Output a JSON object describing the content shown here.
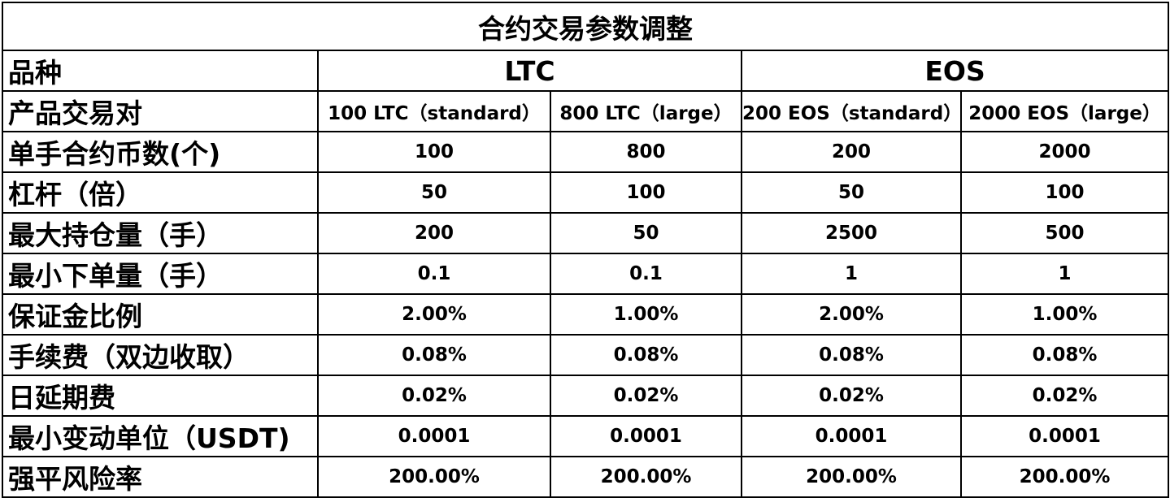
{
  "title": "合约交易参数调整",
  "header": {
    "label": "品种",
    "groups": [
      "LTC",
      "EOS"
    ]
  },
  "pairs_row": {
    "label": "产品交易对",
    "values": [
      "100 LTC（standard）",
      "800 LTC（large）",
      "200 EOS（standard）",
      "2000 EOS（large）"
    ]
  },
  "rows": [
    {
      "label": "单手合约币数(个)",
      "values": [
        "100",
        "800",
        "200",
        "2000"
      ]
    },
    {
      "label": "杠杆（倍）",
      "values": [
        "50",
        "100",
        "50",
        "100"
      ]
    },
    {
      "label": "最大持仓量（手）",
      "values": [
        "200",
        "50",
        "2500",
        "500"
      ]
    },
    {
      "label": "最小下单量（手）",
      "values": [
        "0.1",
        "0.1",
        "1",
        "1"
      ]
    },
    {
      "label": "保证金比例",
      "values": [
        "2.00%",
        "1.00%",
        "2.00%",
        "1.00%"
      ]
    },
    {
      "label": "手续费（双边收取）",
      "values": [
        "0.08%",
        "0.08%",
        "0.08%",
        "0.08%"
      ]
    },
    {
      "label": "日延期费",
      "values": [
        "0.02%",
        "0.02%",
        "0.02%",
        "0.02%"
      ]
    },
    {
      "label": "最小变动单位（USDT)",
      "values": [
        "0.0001",
        "0.0001",
        "0.0001",
        "0.0001"
      ]
    },
    {
      "label": "强平风险率",
      "values": [
        "200.00%",
        "200.00%",
        "200.00%",
        "200.00%"
      ]
    }
  ]
}
